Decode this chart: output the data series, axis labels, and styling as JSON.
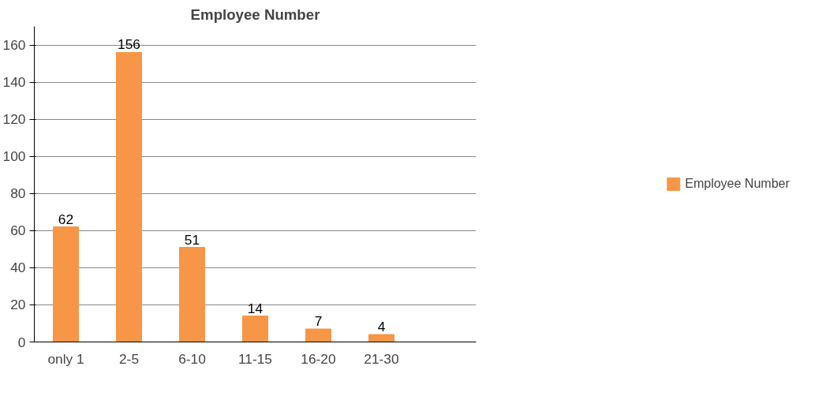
{
  "chart_data": {
    "type": "bar",
    "title": "Employee Number",
    "categories": [
      "only 1",
      "2-5",
      "6-10",
      "11-15",
      "16-20",
      "21-30",
      null
    ],
    "series": [
      {
        "name": "Employee Number",
        "color": "#f79646",
        "values": [
          62,
          156,
          51,
          14,
          7,
          4,
          null
        ]
      }
    ],
    "ylim": [
      0,
      170
    ],
    "yticks": [
      0,
      20,
      40,
      60,
      80,
      100,
      120,
      140,
      160
    ],
    "grid": "y",
    "legend": "right",
    "data_labels": true
  }
}
